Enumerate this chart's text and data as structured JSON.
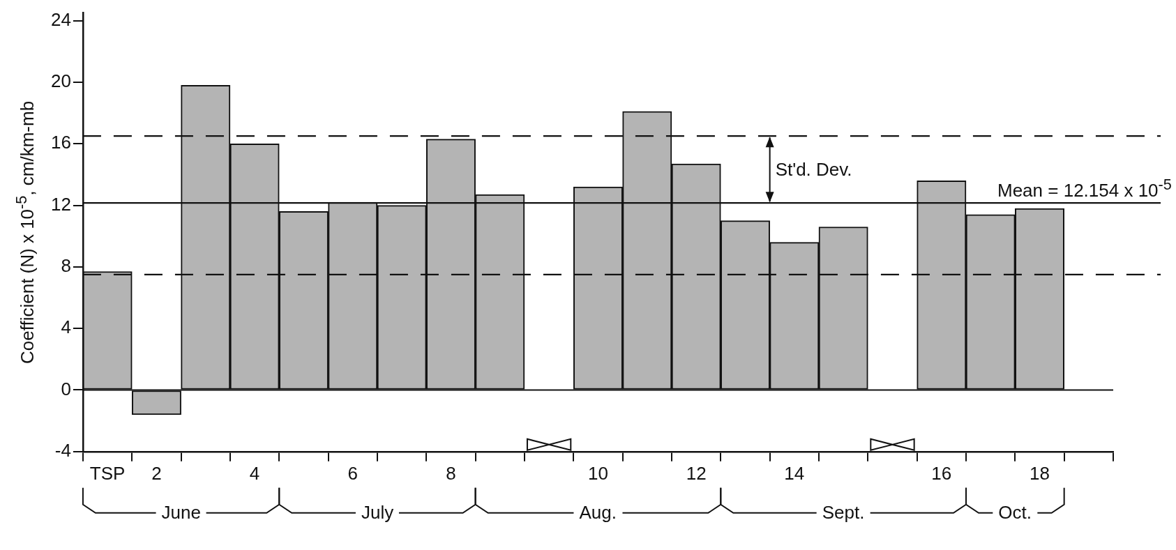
{
  "chart_data": {
    "type": "bar",
    "ylabel": "Coefficient (N) x 10$^{-5}$, cm/km-mb",
    "categories": [
      "TSP",
      "2",
      null,
      "4",
      null,
      "6",
      null,
      "8",
      null,
      null,
      "10",
      null,
      "12",
      null,
      "14",
      null,
      null,
      "16",
      null,
      "18",
      null
    ],
    "values": [
      7.7,
      -1.6,
      19.8,
      16.0,
      11.6,
      12.2,
      12.0,
      16.3,
      12.7,
      null,
      13.2,
      18.1,
      14.7,
      11.0,
      9.6,
      10.6,
      null,
      13.6,
      11.4,
      11.8,
      null
    ],
    "color": "#b4b4b4",
    "ylim": [
      -4,
      24.5
    ],
    "yticks": [
      -4,
      0,
      4,
      8,
      12,
      16,
      20,
      24
    ],
    "ref_lines": [
      {
        "axis": "y",
        "value": 0,
        "line_style": "solid"
      },
      {
        "axis": "y",
        "value": 12.154,
        "label": "Mean = 12.154 x 10$^{-5}$",
        "line_style": "solid"
      },
      {
        "axis": "y",
        "value": 16.5,
        "line_style": "dashed"
      },
      {
        "axis": "y",
        "value": 7.5,
        "line_style": "dashed"
      }
    ],
    "annotations": [
      "St'd. Dev.",
      "June",
      "July",
      "Aug.",
      "Sept.",
      "Oct."
    ]
  }
}
